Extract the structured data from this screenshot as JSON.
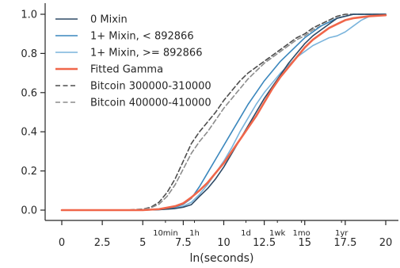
{
  "chart_data": {
    "type": "line",
    "xlabel": "ln(seconds)",
    "ylabel": "",
    "xlim": [
      -1,
      21
    ],
    "ylim": [
      -0.04,
      1.04
    ],
    "x_ticks": [
      0,
      2.5,
      5,
      7.5,
      10,
      12.5,
      15,
      17.5,
      20
    ],
    "x_tick_labels": [
      "0",
      "2.5",
      "5",
      "7.5",
      "10",
      "12.5",
      "15",
      "17.5",
      "20"
    ],
    "y_ticks": [
      0.0,
      0.2,
      0.4,
      0.6,
      0.8,
      1.0
    ],
    "y_tick_labels": [
      "0.0",
      "0.2",
      "0.4",
      "0.6",
      "0.8",
      "1.0"
    ],
    "grid": false,
    "legend_position": "top-left",
    "time_annotations": [
      {
        "label": "10min",
        "x": 6.4
      },
      {
        "label": "1h",
        "x": 8.19
      },
      {
        "label": "1d",
        "x": 11.37
      },
      {
        "label": "1wk",
        "x": 13.31
      },
      {
        "label": "1mo",
        "x": 14.8
      },
      {
        "label": "1yr",
        "x": 17.27
      }
    ],
    "series": [
      {
        "name": "0 Mixin",
        "color": "#2e4a66",
        "style": "solid",
        "x": [
          0,
          5,
          6,
          7,
          7.5,
          8,
          8.5,
          9,
          9.5,
          10,
          10.5,
          11,
          11.5,
          12,
          12.5,
          13,
          13.5,
          14,
          14.5,
          15,
          15.5,
          16,
          16.5,
          17,
          17.5,
          18,
          19,
          20
        ],
        "y": [
          0,
          0,
          0.002,
          0.008,
          0.015,
          0.028,
          0.07,
          0.11,
          0.16,
          0.22,
          0.29,
          0.36,
          0.43,
          0.5,
          0.57,
          0.63,
          0.69,
          0.75,
          0.8,
          0.85,
          0.89,
          0.92,
          0.95,
          0.98,
          0.99,
          1.0,
          1.0,
          1.0
        ]
      },
      {
        "name": "1+ Mixin, < 892866",
        "color": "#3a87bd",
        "style": "solid",
        "x": [
          0,
          5,
          6,
          7,
          7.5,
          8,
          8.5,
          9,
          9.5,
          10,
          10.5,
          11,
          11.5,
          12,
          12.5,
          13,
          13.5,
          14,
          14.5,
          15,
          15.5,
          16,
          16.5,
          17,
          17.5,
          18,
          19,
          20
        ],
        "y": [
          0,
          0,
          0.003,
          0.015,
          0.03,
          0.06,
          0.12,
          0.19,
          0.26,
          0.33,
          0.4,
          0.47,
          0.54,
          0.6,
          0.66,
          0.71,
          0.76,
          0.8,
          0.84,
          0.88,
          0.91,
          0.94,
          0.96,
          0.98,
          0.99,
          1.0,
          1.0,
          1.0
        ]
      },
      {
        "name": "1+ Mixin, >= 892866",
        "color": "#7ab4dc",
        "style": "solid",
        "x": [
          0,
          5,
          6,
          7,
          7.5,
          8,
          8.5,
          9,
          9.5,
          10,
          10.5,
          11,
          11.5,
          12,
          12.5,
          13,
          13.5,
          14,
          14.5,
          15,
          15.5,
          16,
          16.5,
          17,
          17.5,
          18,
          18.5,
          19,
          20
        ],
        "y": [
          0,
          0,
          0.002,
          0.01,
          0.02,
          0.04,
          0.08,
          0.13,
          0.19,
          0.25,
          0.32,
          0.4,
          0.47,
          0.54,
          0.6,
          0.65,
          0.7,
          0.74,
          0.78,
          0.81,
          0.84,
          0.86,
          0.88,
          0.89,
          0.91,
          0.94,
          0.97,
          0.99,
          1.0
        ]
      },
      {
        "name": "Fitted Gamma",
        "color": "#f0664a",
        "style": "solid",
        "x": [
          0,
          5,
          6,
          7,
          7.5,
          8,
          8.5,
          9,
          9.5,
          10,
          10.5,
          11,
          11.5,
          12,
          12.5,
          13,
          13.5,
          14,
          14.5,
          15,
          15.5,
          16,
          16.5,
          17,
          17.5,
          18,
          19,
          20
        ],
        "y": [
          0,
          0,
          0.005,
          0.02,
          0.035,
          0.065,
          0.1,
          0.14,
          0.19,
          0.24,
          0.3,
          0.36,
          0.42,
          0.48,
          0.55,
          0.62,
          0.68,
          0.73,
          0.78,
          0.83,
          0.87,
          0.9,
          0.93,
          0.95,
          0.97,
          0.98,
          0.99,
          0.995
        ]
      },
      {
        "name": "Bitcoin 300000-310000",
        "color": "#4d4d4d",
        "style": "dashed",
        "x": [
          0,
          4,
          5,
          5.5,
          6,
          6.5,
          7,
          7.5,
          8,
          8.5,
          9,
          9.5,
          10,
          10.5,
          11,
          11.5,
          12,
          12.5,
          13,
          13.5,
          14,
          14.5,
          15,
          15.5,
          16,
          16.5,
          17,
          17.5,
          18,
          19,
          20
        ],
        "y": [
          0,
          0,
          0.005,
          0.015,
          0.04,
          0.09,
          0.16,
          0.25,
          0.34,
          0.4,
          0.45,
          0.5,
          0.56,
          0.61,
          0.66,
          0.7,
          0.73,
          0.76,
          0.79,
          0.82,
          0.85,
          0.88,
          0.9,
          0.93,
          0.95,
          0.97,
          0.99,
          1.0,
          1.0,
          1.0,
          1.0
        ]
      },
      {
        "name": "Bitcoin 400000-410000",
        "color": "#8c8c8c",
        "style": "dashed",
        "x": [
          0,
          4,
          5,
          5.5,
          6,
          6.5,
          7,
          7.5,
          8,
          8.5,
          9,
          9.5,
          10,
          10.5,
          11,
          11.5,
          12,
          12.5,
          13,
          13.5,
          14,
          14.5,
          15,
          15.5,
          16,
          16.5,
          17,
          17.5,
          18,
          19,
          20
        ],
        "y": [
          0,
          0,
          0.004,
          0.012,
          0.03,
          0.07,
          0.13,
          0.21,
          0.29,
          0.35,
          0.4,
          0.46,
          0.52,
          0.57,
          0.62,
          0.67,
          0.71,
          0.75,
          0.78,
          0.81,
          0.84,
          0.87,
          0.89,
          0.92,
          0.94,
          0.96,
          0.98,
          0.99,
          1.0,
          1.0,
          1.0
        ]
      }
    ]
  }
}
